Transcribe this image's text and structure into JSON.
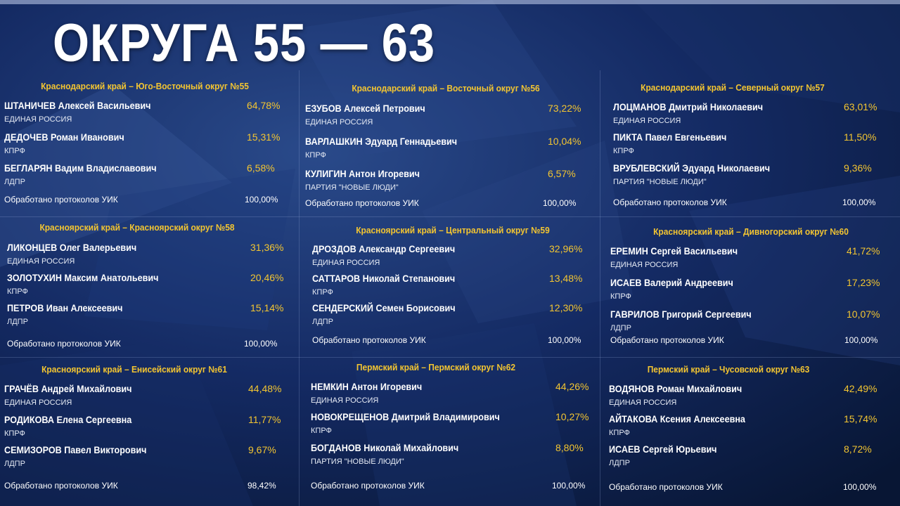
{
  "headline": "ОКРУГА 55 — 63",
  "processed_label": "Обработано протоколов УИК",
  "districts": [
    {
      "title": "Краснодарский край – Юго-Восточный округ №55",
      "candidates": [
        {
          "name": "ШТАНИЧЕВ Алексей Васильевич",
          "party": "ЕДИНАЯ РОССИЯ",
          "pct": "64,78%"
        },
        {
          "name": "ДЕДОЧЕВ Роман Иванович",
          "party": "КПРФ",
          "pct": "15,31%"
        },
        {
          "name": "БЕГЛАРЯН Вадим Владиславович",
          "party": "ЛДПР",
          "pct": "6,58%"
        }
      ],
      "processed": "100,00%"
    },
    {
      "title": "Краснодарский край – Восточный округ №56",
      "candidates": [
        {
          "name": "ЕЗУБОВ Алексей Петрович",
          "party": "ЕДИНАЯ РОССИЯ",
          "pct": "73,22%"
        },
        {
          "name": "ВАРЛАШКИН Эдуард Геннадьевич",
          "party": "КПРФ",
          "pct": "10,04%"
        },
        {
          "name": "КУЛИГИН Антон Игоревич",
          "party": "ПАРТИЯ \"НОВЫЕ ЛЮДИ\"",
          "pct": "6,57%"
        }
      ],
      "processed": "100,00%"
    },
    {
      "title": "Краснодарский край – Северный округ №57",
      "candidates": [
        {
          "name": "ЛОЦМАНОВ Дмитрий Николаевич",
          "party": "ЕДИНАЯ РОССИЯ",
          "pct": "63,01%"
        },
        {
          "name": "ПИКТА Павел Евгеньевич",
          "party": "КПРФ",
          "pct": "11,50%"
        },
        {
          "name": "ВРУБЛЕВСКИЙ Эдуард Николаевич",
          "party": "ПАРТИЯ \"НОВЫЕ ЛЮДИ\"",
          "pct": "9,36%"
        }
      ],
      "processed": "100,00%"
    },
    {
      "title": "Красноярский край – Красноярский округ №58",
      "candidates": [
        {
          "name": "ЛИКОНЦЕВ Олег Валерьевич",
          "party": "ЕДИНАЯ РОССИЯ",
          "pct": "31,36%"
        },
        {
          "name": "ЗОЛОТУХИН Максим Анатольевич",
          "party": "КПРФ",
          "pct": "20,46%"
        },
        {
          "name": "ПЕТРОВ Иван Алексеевич",
          "party": "ЛДПР",
          "pct": "15,14%"
        }
      ],
      "processed": "100,00%"
    },
    {
      "title": "Красноярский край – Центральный округ №59",
      "candidates": [
        {
          "name": "ДРОЗДОВ Александр Сергеевич",
          "party": "ЕДИНАЯ РОССИЯ",
          "pct": "32,96%"
        },
        {
          "name": "САТТАРОВ Николай Степанович",
          "party": "КПРФ",
          "pct": "13,48%"
        },
        {
          "name": "СЕНДЕРСКИЙ Семен Борисович",
          "party": "ЛДПР",
          "pct": "12,30%"
        }
      ],
      "processed": "100,00%"
    },
    {
      "title": "Красноярский край – Дивногорский округ №60",
      "candidates": [
        {
          "name": "ЕРЕМИН Сергей Васильевич",
          "party": "ЕДИНАЯ РОССИЯ",
          "pct": "41,72%"
        },
        {
          "name": "ИСАЕВ Валерий Андреевич",
          "party": "КПРФ",
          "pct": "17,23%"
        },
        {
          "name": "ГАВРИЛОВ Григорий Сергеевич",
          "party": "ЛДПР",
          "pct": "10,07%"
        }
      ],
      "processed": "100,00%"
    },
    {
      "title": "Красноярский край – Енисейский округ №61",
      "candidates": [
        {
          "name": "ГРАЧЁВ Андрей Михайлович",
          "party": "ЕДИНАЯ РОССИЯ",
          "pct": "44,48%"
        },
        {
          "name": "РОДИКОВА Елена Сергеевна",
          "party": "КПРФ",
          "pct": "11,77%"
        },
        {
          "name": "СЕМИЗОРОВ Павел Викторович",
          "party": "ЛДПР",
          "pct": "9,67%"
        }
      ],
      "processed": "98,42%"
    },
    {
      "title": "Пермский край – Пермский округ №62",
      "candidates": [
        {
          "name": "НЕМКИН Антон Игоревич",
          "party": "ЕДИНАЯ РОССИЯ",
          "pct": "44,26%"
        },
        {
          "name": "НОВОКРЕЩЕНОВ Дмитрий Владимирович",
          "party": "КПРФ",
          "pct": "10,27%"
        },
        {
          "name": "БОГДАНОВ Николай Михайлович",
          "party": "ПАРТИЯ \"НОВЫЕ ЛЮДИ\"",
          "pct": "8,80%"
        }
      ],
      "processed": "100,00%"
    },
    {
      "title": "Пермский край – Чусовской округ №63",
      "candidates": [
        {
          "name": "ВОДЯНОВ Роман Михайлович",
          "party": "ЕДИНАЯ РОССИЯ",
          "pct": "42,49%"
        },
        {
          "name": "АЙТАКОВА Ксения Алексеевна",
          "party": "КПРФ",
          "pct": "15,74%"
        },
        {
          "name": "ИСАЕВ Сергей Юрьевич",
          "party": "ЛДПР",
          "pct": "8,72%"
        }
      ],
      "processed": "100,00%"
    }
  ]
}
